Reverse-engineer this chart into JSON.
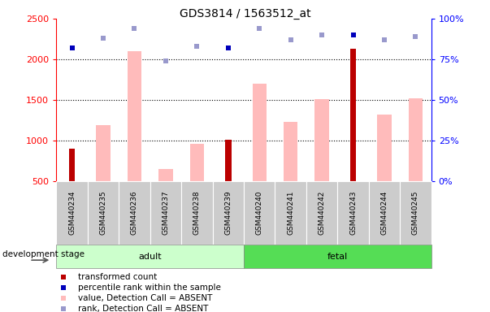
{
  "title": "GDS3814 / 1563512_at",
  "samples": [
    "GSM440234",
    "GSM440235",
    "GSM440236",
    "GSM440237",
    "GSM440238",
    "GSM440239",
    "GSM440240",
    "GSM440241",
    "GSM440242",
    "GSM440243",
    "GSM440244",
    "GSM440245"
  ],
  "transformed_count": [
    900,
    null,
    null,
    null,
    null,
    1010,
    null,
    null,
    null,
    2130,
    null,
    null
  ],
  "percentile_rank": [
    82,
    null,
    null,
    null,
    null,
    82,
    null,
    null,
    null,
    90,
    null,
    null
  ],
  "value_absent": [
    null,
    1190,
    2100,
    650,
    960,
    null,
    1700,
    1230,
    1510,
    null,
    1320,
    1520
  ],
  "rank_absent_pct": [
    null,
    88,
    94,
    74,
    83,
    null,
    94,
    87,
    90,
    null,
    87,
    89
  ],
  "ylim_left": [
    500,
    2500
  ],
  "ylim_right": [
    0,
    100
  ],
  "yticks_left": [
    500,
    1000,
    1500,
    2000,
    2500
  ],
  "yticks_right": [
    0,
    25,
    50,
    75,
    100
  ],
  "bar_color_dark_red": "#bb0000",
  "bar_color_light_pink": "#ffbbbb",
  "dot_color_blue": "#0000bb",
  "dot_color_light_blue": "#9999cc",
  "adult_color": "#ccffcc",
  "fetal_color": "#55dd55",
  "sample_bg": "#cccccc",
  "grid_color": "#333333",
  "legend_items": [
    {
      "label": "transformed count",
      "color": "#bb0000"
    },
    {
      "label": "percentile rank within the sample",
      "color": "#0000bb"
    },
    {
      "label": "value, Detection Call = ABSENT",
      "color": "#ffbbbb"
    },
    {
      "label": "rank, Detection Call = ABSENT",
      "color": "#9999cc"
    }
  ]
}
